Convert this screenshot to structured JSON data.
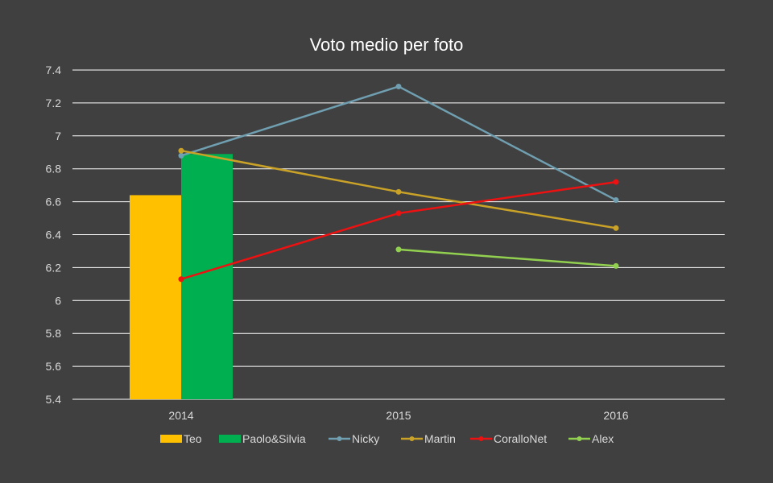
{
  "chart_data": {
    "type": "bar",
    "title": "Voto medio per foto",
    "xlabel": "",
    "ylabel": "",
    "ylim": [
      5.4,
      7.4
    ],
    "yticks": [
      "5.4",
      "5.6",
      "5.8",
      "6",
      "6.2",
      "6.4",
      "6.6",
      "6.8",
      "7",
      "7.2",
      "7.4"
    ],
    "categories": [
      "2014",
      "2015",
      "2016"
    ],
    "grid": true,
    "legend_position": "bottom",
    "series": [
      {
        "name": "Teo",
        "kind": "bar",
        "color": "#ffc000",
        "values": [
          6.64,
          null,
          null
        ]
      },
      {
        "name": "Paolo&Silvia",
        "kind": "bar",
        "color": "#00b050",
        "values": [
          6.89,
          null,
          null
        ]
      },
      {
        "name": "Nicky",
        "kind": "line",
        "color": "#6f9fb0",
        "values": [
          6.88,
          7.3,
          6.61
        ]
      },
      {
        "name": "Martin",
        "kind": "line",
        "color": "#c9a227",
        "values": [
          6.91,
          6.66,
          6.44
        ]
      },
      {
        "name": "CoralloNet",
        "kind": "line",
        "color": "#ee1111",
        "values": [
          6.13,
          6.53,
          6.72
        ]
      },
      {
        "name": "Alex",
        "kind": "line",
        "color": "#92d050",
        "values": [
          null,
          6.31,
          6.21
        ]
      }
    ]
  }
}
